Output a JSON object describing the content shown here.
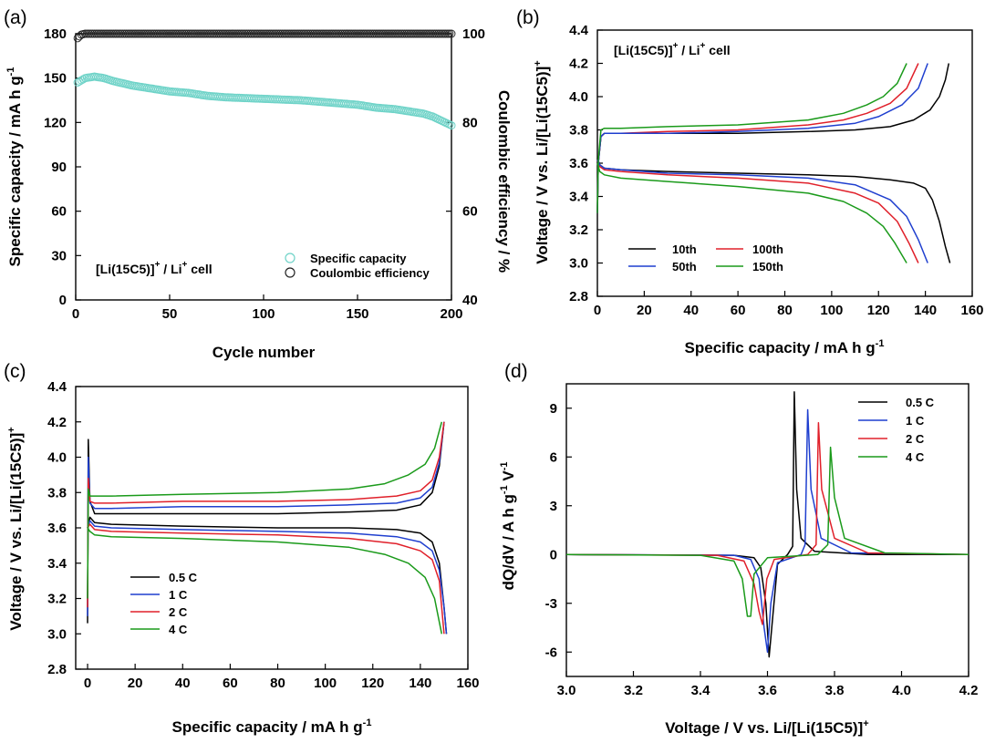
{
  "colors": {
    "black": "#000000",
    "blue": "#1f3fcf",
    "red": "#e0202a",
    "green": "#1a9a1a",
    "cyan": "#6fd3c8",
    "ce_marker": "#222222"
  },
  "chart_data": [
    {
      "id": "a",
      "panel_label": "(a)",
      "type": "scatter",
      "xlabel": "Cycle number",
      "ylabel_left": "Specific capacity / mA h g",
      "ylabel_left_sup": "-1",
      "ylabel_right": "Coulombic efficiency / %",
      "xlim": [
        0,
        200
      ],
      "ylim_left": [
        0,
        180
      ],
      "ylim_right": [
        40,
        100
      ],
      "xticks": [
        "0",
        "50",
        "100",
        "150",
        "200"
      ],
      "yticks_left": [
        "0",
        "30",
        "60",
        "90",
        "120",
        "150",
        "180"
      ],
      "yticks_right": [
        "40",
        "60",
        "80",
        "100"
      ],
      "cell_label": "[Li(15C5)]",
      "cell_label_sup": "+",
      "cell_label_suffix": " / Li",
      "cell_label_suffix_sup": "+",
      "cell_label_end": " cell",
      "legend": [
        "Specific capacity",
        "Coulombic efficiency"
      ],
      "series": [
        {
          "name": "Specific capacity",
          "axis": "left",
          "x": [
            1,
            5,
            10,
            15,
            20,
            30,
            40,
            50,
            60,
            70,
            80,
            90,
            100,
            110,
            120,
            130,
            140,
            150,
            160,
            170,
            180,
            185,
            190,
            195,
            200
          ],
          "values": [
            147,
            150,
            151,
            150,
            148,
            145,
            143,
            141,
            140,
            138,
            137,
            136.5,
            136,
            135.5,
            135,
            134,
            133,
            132,
            130,
            129,
            127,
            126,
            124,
            121,
            118
          ]
        },
        {
          "name": "Coulombic efficiency",
          "axis": "right",
          "x": [
            1,
            3,
            5,
            10,
            20,
            50,
            90,
            100,
            140,
            150,
            200
          ],
          "values": [
            99.0,
            99.8,
            100,
            100,
            100,
            100,
            100,
            100,
            100,
            100,
            100
          ]
        }
      ]
    },
    {
      "id": "b",
      "panel_label": "(b)",
      "type": "line",
      "xlabel": "Specific capacity / mA h g",
      "xlabel_sup": "-1",
      "ylabel": "Voltage / V vs. Li/[Li(15C5)]",
      "ylabel_sup": "+",
      "xlim": [
        0,
        160
      ],
      "ylim": [
        2.8,
        4.4
      ],
      "xticks": [
        "0",
        "20",
        "40",
        "60",
        "80",
        "100",
        "120",
        "140",
        "160"
      ],
      "yticks": [
        "2.8",
        "3.0",
        "3.2",
        "3.4",
        "3.6",
        "3.8",
        "4.0",
        "4.2",
        "4.4"
      ],
      "cell_label": "[Li(15C5)]",
      "cell_label_sup": "+",
      "cell_label_suffix": " / Li",
      "cell_label_suffix_sup": "+",
      "cell_label_end": " cell",
      "legend": [
        "10th",
        "100th",
        "50th",
        "150th"
      ],
      "series": [
        {
          "name": "10th",
          "color": "black",
          "charge": {
            "x": [
              0,
              0.4,
              1.5,
              3,
              10,
              30,
              60,
              90,
              110,
              125,
              135,
              142,
              146,
              148.5,
              150
            ],
            "y": [
              3.3,
              3.6,
              3.76,
              3.78,
              3.78,
              3.78,
              3.78,
              3.79,
              3.8,
              3.82,
              3.86,
              3.92,
              4.0,
              4.1,
              4.2
            ]
          },
          "discharge": {
            "x": [
              0,
              1,
              3,
              10,
              30,
              60,
              90,
              110,
              125,
              135,
              140,
              143,
              146,
              148.5,
              150.5
            ],
            "y": [
              3.63,
              3.59,
              3.57,
              3.56,
              3.55,
              3.54,
              3.53,
              3.52,
              3.5,
              3.48,
              3.45,
              3.38,
              3.25,
              3.1,
              3.0
            ]
          }
        },
        {
          "name": "100th",
          "color": "red",
          "charge": {
            "x": [
              0,
              0.4,
              1.5,
              3,
              10,
              30,
              60,
              90,
              105,
              115,
              125,
              132,
              137
            ],
            "y": [
              3.3,
              3.6,
              3.76,
              3.78,
              3.78,
              3.79,
              3.8,
              3.83,
              3.86,
              3.9,
              3.96,
              4.05,
              4.2
            ]
          },
          "discharge": {
            "x": [
              0,
              1,
              3,
              10,
              30,
              60,
              90,
              110,
              120,
              128,
              133,
              137
            ],
            "y": [
              3.62,
              3.58,
              3.56,
              3.55,
              3.53,
              3.51,
              3.48,
              3.42,
              3.36,
              3.25,
              3.12,
              3.0
            ]
          }
        },
        {
          "name": "50th",
          "color": "blue",
          "charge": {
            "x": [
              0,
              0.4,
              1.5,
              3,
              10,
              30,
              60,
              90,
              110,
              120,
              130,
              137,
              141
            ],
            "y": [
              3.3,
              3.6,
              3.76,
              3.78,
              3.78,
              3.78,
              3.79,
              3.81,
              3.84,
              3.88,
              3.95,
              4.05,
              4.2
            ]
          },
          "discharge": {
            "x": [
              0,
              1,
              3,
              10,
              30,
              60,
              90,
              110,
              125,
              132,
              137,
              141
            ],
            "y": [
              3.62,
              3.59,
              3.57,
              3.56,
              3.54,
              3.53,
              3.51,
              3.47,
              3.38,
              3.28,
              3.14,
              3.0
            ]
          }
        },
        {
          "name": "150th",
          "color": "green",
          "charge": {
            "x": [
              0,
              0.4,
              1.5,
              3,
              10,
              30,
              60,
              90,
              105,
              115,
              122,
              128,
              132
            ],
            "y": [
              3.3,
              3.62,
              3.8,
              3.81,
              3.81,
              3.82,
              3.83,
              3.86,
              3.9,
              3.95,
              4.0,
              4.08,
              4.2
            ]
          },
          "discharge": {
            "x": [
              0,
              1,
              3,
              10,
              30,
              60,
              90,
              105,
              115,
              122,
              127,
              132
            ],
            "y": [
              3.6,
              3.55,
              3.53,
              3.51,
              3.49,
              3.46,
              3.42,
              3.37,
              3.3,
              3.22,
              3.12,
              3.0
            ]
          }
        }
      ]
    },
    {
      "id": "c",
      "panel_label": "(c)",
      "type": "line",
      "xlabel": "Specific capacity / mA h g",
      "xlabel_sup": "-1",
      "ylabel": "Voltage / V vs. Li/[Li(15C5)]",
      "ylabel_sup": "+",
      "xlim": [
        -5,
        160
      ],
      "ylim": [
        2.8,
        4.4
      ],
      "xticks": [
        "0",
        "20",
        "40",
        "60",
        "80",
        "100",
        "120",
        "140",
        "160"
      ],
      "yticks": [
        "2.8",
        "3.0",
        "3.2",
        "3.4",
        "3.6",
        "3.8",
        "4.0",
        "4.2",
        "4.4"
      ],
      "legend": [
        "0.5 C",
        "1 C",
        "2 C",
        "4 C"
      ],
      "series": [
        {
          "name": "0.5 C",
          "color": "black",
          "charge": {
            "x": [
              0,
              0.3,
              1,
              3,
              10,
              40,
              80,
              110,
              130,
              140,
              145,
              148,
              150
            ],
            "y": [
              3.06,
              4.1,
              3.75,
              3.68,
              3.68,
              3.68,
              3.68,
              3.69,
              3.7,
              3.73,
              3.8,
              3.95,
              4.2
            ]
          },
          "discharge": {
            "x": [
              0,
              1,
              3,
              10,
              40,
              80,
              110,
              130,
              140,
              145,
              148,
              150,
              151
            ],
            "y": [
              3.6,
              3.66,
              3.63,
              3.62,
              3.61,
              3.6,
              3.6,
              3.59,
              3.57,
              3.52,
              3.4,
              3.15,
              3.0
            ]
          }
        },
        {
          "name": "1 C",
          "color": "blue",
          "charge": {
            "x": [
              0,
              0.3,
              1,
              3,
              10,
              40,
              80,
              110,
              130,
              140,
              145,
              148,
              150
            ],
            "y": [
              3.1,
              4.0,
              3.74,
              3.71,
              3.71,
              3.72,
              3.72,
              3.73,
              3.74,
              3.77,
              3.83,
              3.97,
              4.2
            ]
          },
          "discharge": {
            "x": [
              0,
              1,
              3,
              10,
              40,
              80,
              110,
              130,
              140,
              145,
              148,
              150,
              151
            ],
            "y": [
              3.6,
              3.64,
              3.61,
              3.6,
              3.59,
              3.58,
              3.57,
              3.55,
              3.52,
              3.47,
              3.36,
              3.15,
              3.0
            ]
          }
        },
        {
          "name": "2 C",
          "color": "red",
          "charge": {
            "x": [
              0,
              0.3,
              1,
              3,
              10,
              40,
              80,
              110,
              130,
              140,
              145,
              148,
              150
            ],
            "y": [
              3.15,
              3.88,
              3.75,
              3.74,
              3.74,
              3.75,
              3.75,
              3.76,
              3.78,
              3.81,
              3.87,
              4.0,
              4.2
            ]
          },
          "discharge": {
            "x": [
              0,
              1,
              3,
              10,
              40,
              80,
              110,
              130,
              140,
              145,
              148,
              150
            ],
            "y": [
              3.6,
              3.62,
              3.59,
              3.58,
              3.57,
              3.56,
              3.54,
              3.51,
              3.47,
              3.42,
              3.3,
              3.0
            ]
          }
        },
        {
          "name": "4 C",
          "color": "green",
          "charge": {
            "x": [
              0,
              0.3,
              1,
              3,
              10,
              40,
              80,
              110,
              125,
              135,
              142,
              146,
              149
            ],
            "y": [
              3.2,
              3.82,
              3.78,
              3.78,
              3.78,
              3.79,
              3.8,
              3.82,
              3.85,
              3.9,
              3.96,
              4.05,
              4.2
            ]
          },
          "discharge": {
            "x": [
              0,
              1,
              3,
              10,
              40,
              80,
              110,
              125,
              135,
              142,
              146,
              149
            ],
            "y": [
              3.6,
              3.58,
              3.56,
              3.55,
              3.54,
              3.52,
              3.49,
              3.45,
              3.4,
              3.32,
              3.2,
              3.0
            ]
          }
        }
      ]
    },
    {
      "id": "d",
      "panel_label": "(d)",
      "type": "line",
      "xlabel": "Voltage / V vs. Li/[Li(15C5)]",
      "xlabel_sup": "+",
      "ylabel": "dQ/dV / A h g",
      "ylabel_sup1": "-1",
      "ylabel_mid": " V",
      "ylabel_sup2": "-1",
      "xlim": [
        3.0,
        4.2
      ],
      "ylim": [
        -7.5,
        10.5
      ],
      "xticks": [
        "3.0",
        "3.2",
        "3.4",
        "3.6",
        "3.8",
        "4.0",
        "4.2"
      ],
      "yticks": [
        "-6",
        "-3",
        "0",
        "3",
        "6",
        "9"
      ],
      "legend": [
        "0.5 C",
        "1 C",
        "2 C",
        "4 C"
      ],
      "series": [
        {
          "name": "0.5 C",
          "color": "black",
          "x": [
            3.0,
            3.5,
            3.56,
            3.58,
            3.595,
            3.605,
            3.615,
            3.63,
            3.66,
            3.675,
            3.68,
            3.687,
            3.7,
            3.74,
            3.9,
            4.2
          ],
          "y": [
            0,
            -0.05,
            -0.2,
            -0.8,
            -3.0,
            -6.3,
            -4.0,
            -0.6,
            0,
            0.5,
            10.0,
            4.0,
            1.0,
            0.2,
            0,
            0
          ]
        },
        {
          "name": "1 C",
          "color": "blue",
          "x": [
            3.0,
            3.5,
            3.55,
            3.575,
            3.59,
            3.6,
            3.61,
            3.63,
            3.7,
            3.712,
            3.72,
            3.73,
            3.76,
            3.85,
            4.2
          ],
          "y": [
            0,
            -0.05,
            -0.3,
            -1.5,
            -4.5,
            -6.0,
            -3.0,
            -0.5,
            0,
            0.6,
            8.9,
            4.0,
            1.0,
            0.1,
            0
          ]
        },
        {
          "name": "2 C",
          "color": "red",
          "x": [
            3.0,
            3.45,
            3.53,
            3.56,
            3.575,
            3.585,
            3.598,
            3.62,
            3.72,
            3.745,
            3.752,
            3.762,
            3.8,
            3.9,
            4.2
          ],
          "y": [
            0,
            -0.05,
            -0.4,
            -1.8,
            -3.5,
            -4.3,
            -1.5,
            -0.3,
            0,
            0.6,
            8.1,
            4.0,
            1.0,
            0.1,
            0
          ]
        },
        {
          "name": "4 C",
          "color": "green",
          "x": [
            3.0,
            3.4,
            3.5,
            3.525,
            3.54,
            3.55,
            3.56,
            3.6,
            3.75,
            3.78,
            3.788,
            3.8,
            3.83,
            3.95,
            4.2
          ],
          "y": [
            0,
            -0.05,
            -0.4,
            -1.5,
            -3.8,
            -3.8,
            -1.2,
            -0.2,
            0,
            0.6,
            6.6,
            3.5,
            1.0,
            0.1,
            0
          ]
        }
      ]
    }
  ]
}
